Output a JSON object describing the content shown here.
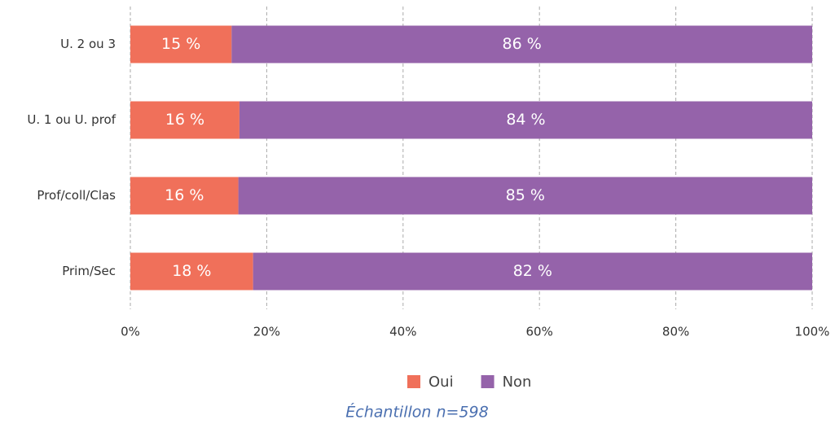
{
  "chart_data": {
    "type": "bar",
    "orientation": "horizontal",
    "stacked": true,
    "categories": [
      "U. 2 ou 3",
      "U. 1 ou U. prof",
      "Prof/coll/Clas",
      "Prim/Sec"
    ],
    "series": [
      {
        "name": "Oui",
        "color": "#f0705a",
        "values": [
          15,
          16,
          16,
          18
        ],
        "value_labels": [
          "15 %",
          "16 %",
          "16 %",
          "18 %"
        ]
      },
      {
        "name": "Non",
        "color": "#9563aa",
        "values": [
          86,
          84,
          85,
          82
        ],
        "value_labels": [
          "86 %",
          "84 %",
          "85 %",
          "82 %"
        ]
      }
    ],
    "xlim": [
      0,
      100
    ],
    "xticks": [
      {
        "value": 0,
        "label": "0%"
      },
      {
        "value": 20,
        "label": "20%"
      },
      {
        "value": 40,
        "label": "40%"
      },
      {
        "value": 60,
        "label": "60%"
      },
      {
        "value": 80,
        "label": "80%"
      },
      {
        "value": 100,
        "label": "100%"
      }
    ],
    "grid": true,
    "legend": "bottom",
    "annotation": "Échantillon n=598"
  }
}
